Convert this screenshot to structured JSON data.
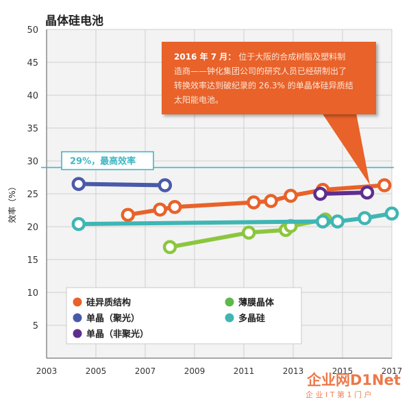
{
  "chart_data": {
    "type": "line",
    "title": "晶体硅电池",
    "ylabel": "效率（%）",
    "xlabel": "",
    "xlim": [
      2003,
      2017
    ],
    "ylim": [
      0,
      50
    ],
    "x_ticks": [
      "2003",
      "2005",
      "2007",
      "2009",
      "2011",
      "2013",
      "2015",
      "2017"
    ],
    "y_ticks": [
      "5",
      "10",
      "15",
      "20",
      "25",
      "30",
      "35",
      "40",
      "45",
      "50"
    ],
    "grid": true,
    "reference_line": {
      "value": 29,
      "label": "29%，最高效率"
    },
    "series": [
      {
        "name": "硅异质结构",
        "color": "#e8622a",
        "x": [
          2006.3,
          2007.6,
          2008.2,
          2011.4,
          2012.1,
          2012.9,
          2014.2,
          2016.7
        ],
        "y": [
          21.8,
          22.6,
          23.0,
          23.7,
          23.9,
          24.7,
          25.6,
          26.3
        ]
      },
      {
        "name": "单晶（聚光）",
        "color": "#4a5aa8",
        "x": [
          2004.3,
          2007.8
        ],
        "y": [
          26.5,
          26.3
        ]
      },
      {
        "name": "单晶（非聚光）",
        "color": "#5e2e8e",
        "x": [
          2014.1,
          2016.0
        ],
        "y": [
          25.0,
          25.2
        ]
      },
      {
        "name": "薄膜晶体",
        "color": "#8cc63f",
        "x": [
          2008.0,
          2011.2,
          2012.7,
          2012.9,
          2014.3
        ],
        "y": [
          16.9,
          19.1,
          19.5,
          20.1,
          21.1
        ]
      },
      {
        "name": "多晶硅",
        "color": "#3fb6b4",
        "x": [
          2004.3,
          2014.2,
          2014.8,
          2015.9,
          2017.0
        ],
        "y": [
          20.4,
          20.8,
          20.8,
          21.3,
          22.0
        ]
      }
    ],
    "annotation": {
      "text_bold": "2016 年 7 月：",
      "text_lines": [
        "位于大阪的合成树脂及塑料制",
        "造商——钟化集团公司的研究人员已经研制出了",
        "转换效率达到破纪录的 26.3% 的单晶体硅异质结",
        "太阳能电池。"
      ]
    },
    "legend": {
      "placement": "bottom-left",
      "items": [
        {
          "label": "硅异质结构",
          "color": "#e8622a"
        },
        {
          "label": "薄膜晶体",
          "color": "#5fb84a"
        },
        {
          "label": "单晶（聚光）",
          "color": "#4a5aa8"
        },
        {
          "label": "多晶硅",
          "color": "#3fb6b4"
        },
        {
          "label": "单晶（非聚光）",
          "color": "#5e2e8e"
        }
      ]
    }
  },
  "watermark": {
    "brand": "企业网D1Net",
    "sub": "企 业 I T 第 1 门 户"
  }
}
